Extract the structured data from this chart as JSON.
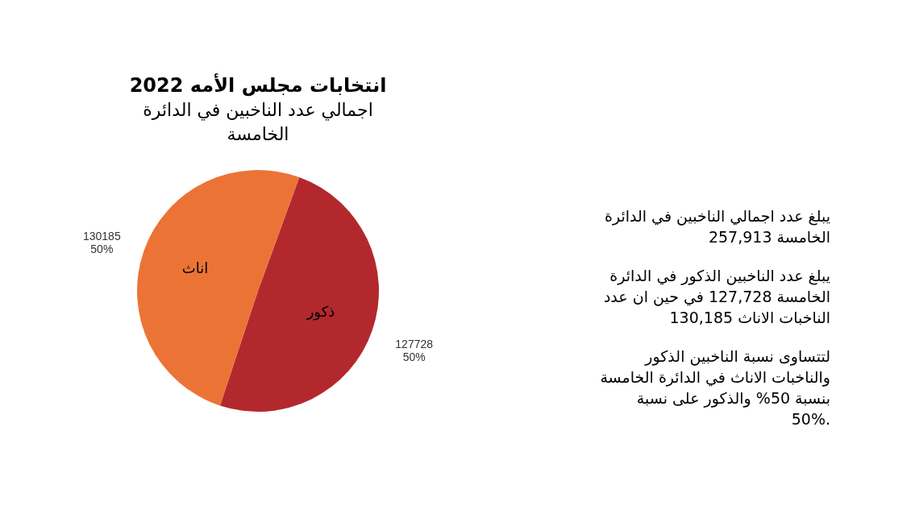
{
  "chart_data": [
    {
      "type": "pie",
      "title": "انتخابات مجلس الأمه 2022",
      "subtitle": "اجمالي عدد الناخبين في الدائرة الخامسة",
      "categories": [
        "ذكور",
        "اناث"
      ],
      "values": [
        127728,
        130185
      ],
      "colors": [
        "#b3282d",
        "#ec7336"
      ],
      "value_labels": [
        "127728\n50%",
        "130185\n50%"
      ]
    },
    {
      "type": "other",
      "annotations": [
        "يبلغ عدد اجمالي الناخبين في الدائرة الخامسة 257,913",
        "يبلغ عدد الناخبين الذكور في الدائرة الخامسة 127,728 في حين ان عدد الناخبات الاناث 130,185",
        "لتتساوى نسبة الناخبين الذكور والناخبات الاناث في الدائرة الخامسة بنسبة 50% والذكور على نسبة 50%."
      ]
    }
  ]
}
